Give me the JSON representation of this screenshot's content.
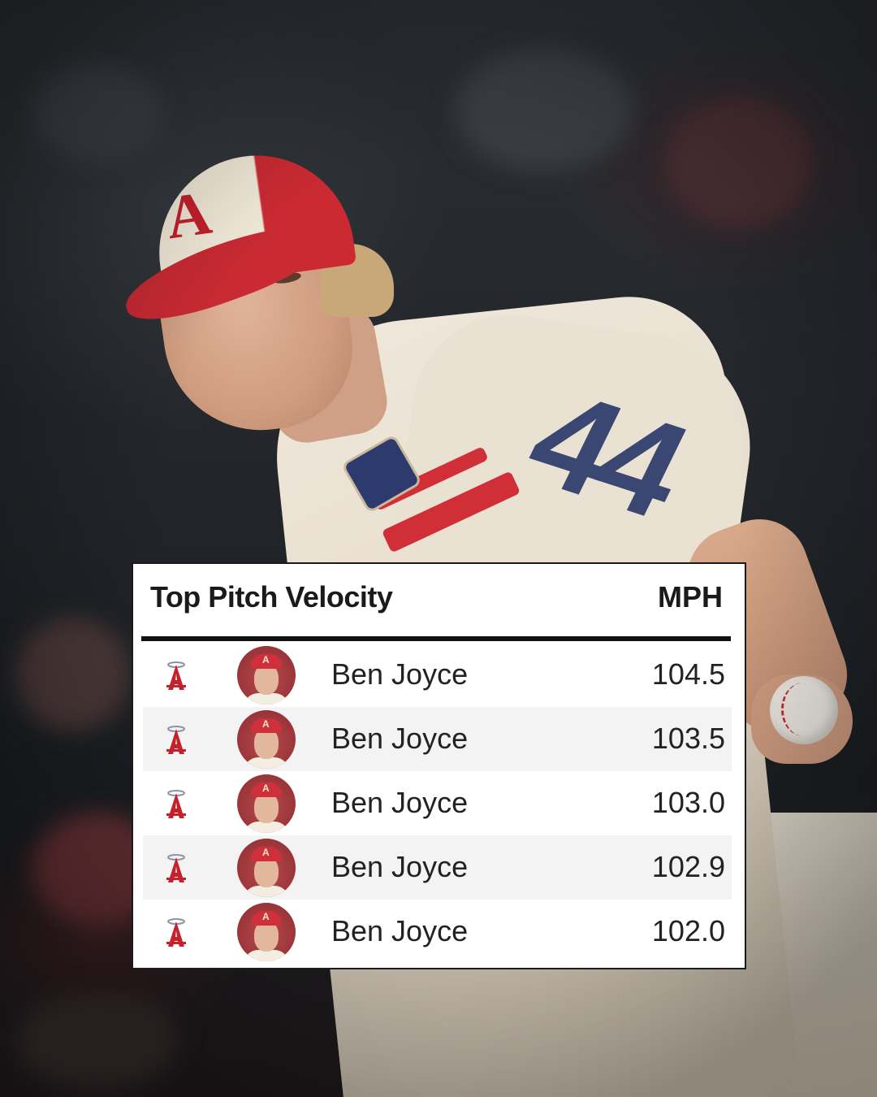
{
  "card": {
    "title": "Top Pitch Velocity",
    "unit": "MPH"
  },
  "rows": [
    {
      "player": "Ben Joyce",
      "mph": "104.5",
      "team_logo": "angels-logo-icon",
      "avatar": "player-headshot"
    },
    {
      "player": "Ben Joyce",
      "mph": "103.5",
      "team_logo": "angels-logo-icon",
      "avatar": "player-headshot"
    },
    {
      "player": "Ben Joyce",
      "mph": "103.0",
      "team_logo": "angels-logo-icon",
      "avatar": "player-headshot"
    },
    {
      "player": "Ben Joyce",
      "mph": "102.9",
      "team_logo": "angels-logo-icon",
      "avatar": "player-headshot"
    },
    {
      "player": "Ben Joyce",
      "mph": "102.0",
      "team_logo": "angels-logo-icon",
      "avatar": "player-headshot"
    }
  ],
  "colors": {
    "angels_red": "#c4212c",
    "card_bg": "#ffffff",
    "alt_row": "#f3f3f3",
    "rule": "#111111"
  }
}
